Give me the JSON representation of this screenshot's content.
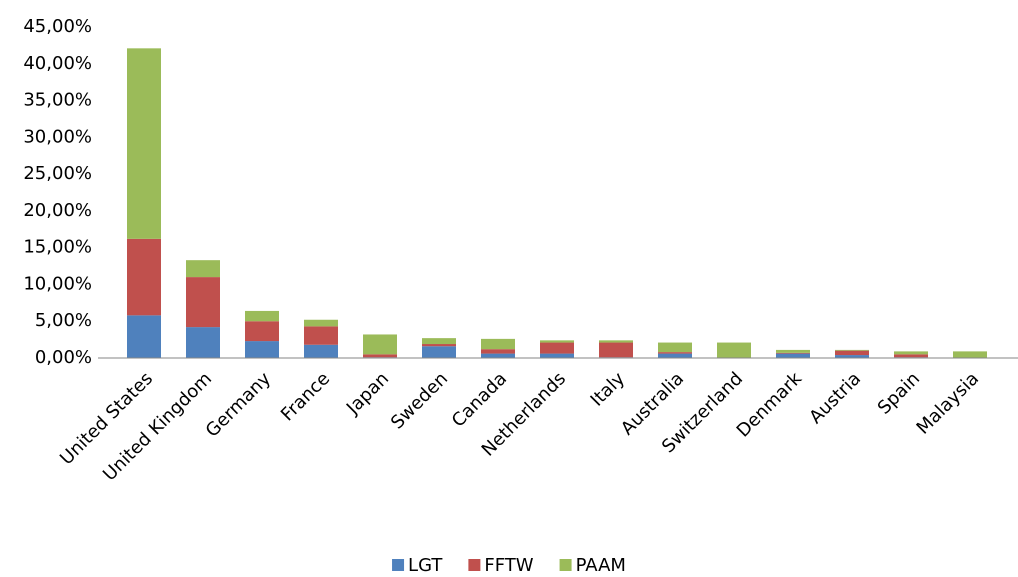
{
  "chart_data": {
    "type": "stacked_bar",
    "categories": [
      "United States",
      "United Kingdom",
      "Germany",
      "France",
      "Japan",
      "Sweden",
      "Canada",
      "Netherlands",
      "Italy",
      "Australia",
      "Switzerland",
      "Denmark",
      "Austria",
      "Spain",
      "Malaysia"
    ],
    "series": [
      {
        "name": "LGT",
        "color": "#4f81bd",
        "values": [
          5.8,
          4.2,
          2.3,
          1.8,
          0.1,
          1.6,
          0.6,
          0.6,
          0.1,
          0.6,
          0,
          0.6,
          0.4,
          0.1,
          0
        ]
      },
      {
        "name": "FFTW",
        "color": "#c0504d",
        "values": [
          10.4,
          6.8,
          2.7,
          2.5,
          0.4,
          0.3,
          0.6,
          1.5,
          2.0,
          0.2,
          0,
          0.1,
          0.6,
          0.4,
          0
        ]
      },
      {
        "name": "PAAM",
        "color": "#9bbb59",
        "values": [
          25.9,
          2.3,
          1.4,
          0.9,
          2.7,
          0.8,
          1.4,
          0.3,
          0.3,
          1.3,
          2.1,
          0.4,
          0.1,
          0.4,
          0.9
        ]
      }
    ],
    "ylim": [
      0,
      45
    ],
    "yticks": [
      {
        "value": 0,
        "label": "0,00%"
      },
      {
        "value": 5,
        "label": "5,00%"
      },
      {
        "value": 10,
        "label": "10,00%"
      },
      {
        "value": 15,
        "label": "15,00%"
      },
      {
        "value": 20,
        "label": "20,00%"
      },
      {
        "value": 25,
        "label": "25,00%"
      },
      {
        "value": 30,
        "label": "30,00%"
      },
      {
        "value": 35,
        "label": "35,00%"
      },
      {
        "value": 40,
        "label": "40,00%"
      },
      {
        "value": 45,
        "label": "45,00%"
      }
    ],
    "legend": "bottom"
  }
}
